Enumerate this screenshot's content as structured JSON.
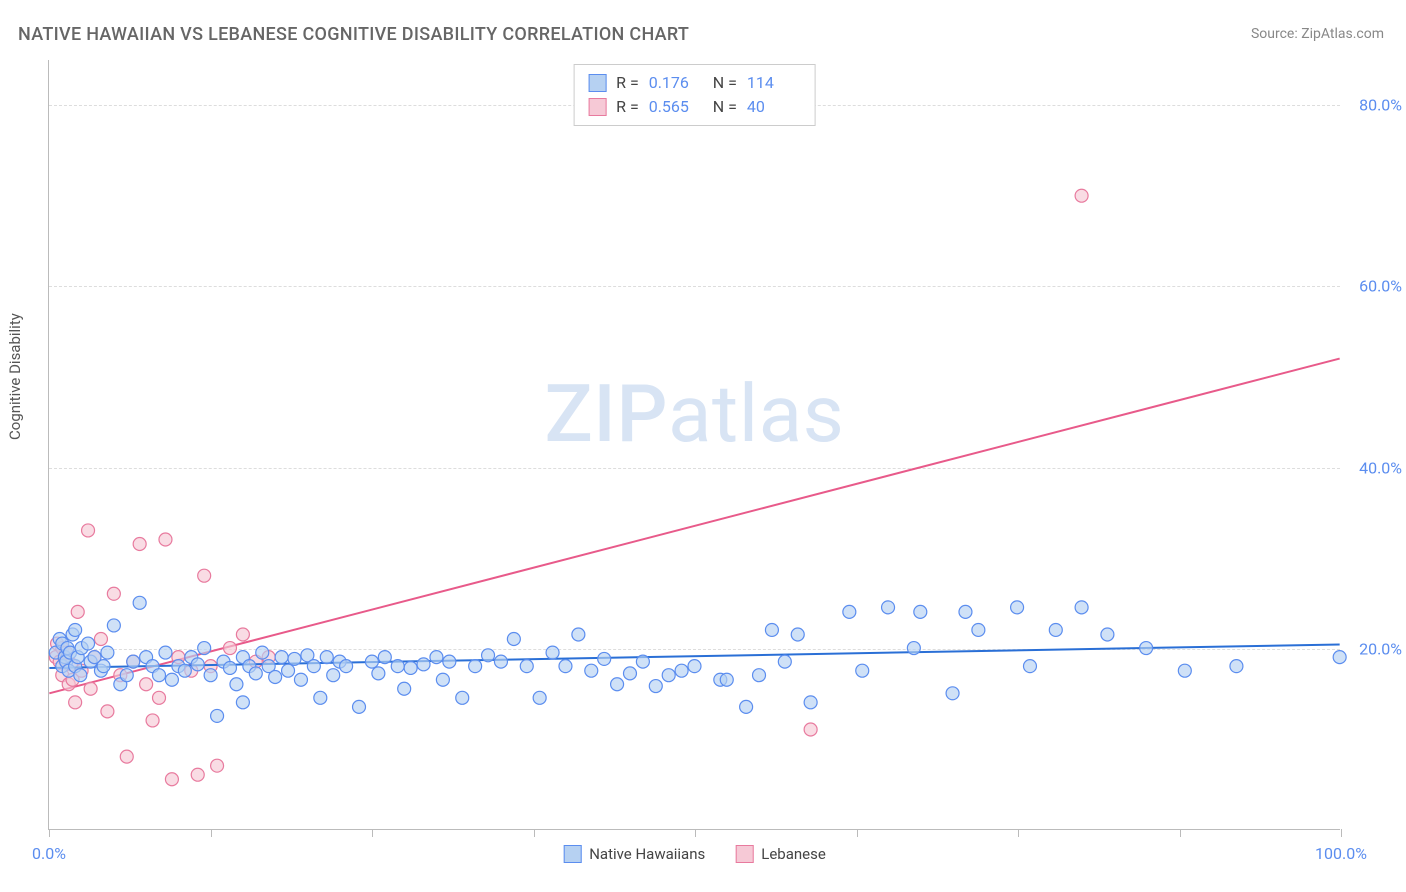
{
  "title": "NATIVE HAWAIIAN VS LEBANESE COGNITIVE DISABILITY CORRELATION CHART",
  "source": "Source: ZipAtlas.com",
  "y_axis_label": "Cognitive Disability",
  "watermark_a": "ZIP",
  "watermark_b": "atlas",
  "chart": {
    "type": "scatter",
    "xlim": [
      0,
      100
    ],
    "ylim": [
      0,
      85
    ],
    "y_ticks": [
      20,
      40,
      60,
      80
    ],
    "y_tick_labels": [
      "20.0%",
      "40.0%",
      "60.0%",
      "80.0%"
    ],
    "x_ticks": [
      0,
      12.5,
      25,
      37.5,
      50,
      62.5,
      75,
      87.5,
      100
    ],
    "x_tick_labels_shown": {
      "0": "0.0%",
      "100": "100.0%"
    },
    "grid_color": "#dddddd",
    "axis_color": "#bbbbbb",
    "background_color": "#ffffff",
    "tick_label_color": "#5b8def",
    "tick_label_fontsize": 16,
    "title_fontsize": 18,
    "title_color": "#666666",
    "marker_radius": 6.5,
    "marker_stroke_width": 1.2,
    "trend_line_width": 2,
    "series": {
      "native_hawaiians": {
        "label": "Native Hawaiians",
        "fill": "#b6d1f2",
        "stroke": "#5b8def",
        "fill_opacity": 0.65,
        "r_value": "0.176",
        "n_value": "114",
        "trend_line": {
          "x1": 0,
          "y1": 17.8,
          "x2": 100,
          "y2": 20.4,
          "color": "#2a6fd6"
        },
        "points": [
          [
            0.5,
            19.5
          ],
          [
            0.8,
            21
          ],
          [
            1,
            18
          ],
          [
            1,
            20.5
          ],
          [
            1.2,
            19
          ],
          [
            1.3,
            18.5
          ],
          [
            1.4,
            20
          ],
          [
            1.5,
            17.5
          ],
          [
            1.6,
            19.5
          ],
          [
            1.8,
            21.5
          ],
          [
            2,
            22
          ],
          [
            2,
            18
          ],
          [
            2.2,
            19
          ],
          [
            2.4,
            17
          ],
          [
            2.5,
            20
          ],
          [
            3,
            20.5
          ],
          [
            3.2,
            18.5
          ],
          [
            3.5,
            19
          ],
          [
            4,
            17.5
          ],
          [
            4.2,
            18
          ],
          [
            4.5,
            19.5
          ],
          [
            5,
            22.5
          ],
          [
            5.5,
            16
          ],
          [
            6,
            17
          ],
          [
            6.5,
            18.5
          ],
          [
            7,
            25
          ],
          [
            7.5,
            19
          ],
          [
            8,
            18
          ],
          [
            8.5,
            17
          ],
          [
            9,
            19.5
          ],
          [
            9.5,
            16.5
          ],
          [
            10,
            18
          ],
          [
            10.5,
            17.5
          ],
          [
            11,
            19
          ],
          [
            11.5,
            18.2
          ],
          [
            12,
            20
          ],
          [
            12.5,
            17
          ],
          [
            13,
            12.5
          ],
          [
            13.5,
            18.5
          ],
          [
            14,
            17.8
          ],
          [
            14.5,
            16
          ],
          [
            15,
            19
          ],
          [
            15,
            14
          ],
          [
            15.5,
            18
          ],
          [
            16,
            17.2
          ],
          [
            16.5,
            19.5
          ],
          [
            17,
            18
          ],
          [
            17.5,
            16.8
          ],
          [
            18,
            19
          ],
          [
            18.5,
            17.5
          ],
          [
            19,
            18.8
          ],
          [
            19.5,
            16.5
          ],
          [
            20,
            19.2
          ],
          [
            20.5,
            18
          ],
          [
            21,
            14.5
          ],
          [
            21.5,
            19
          ],
          [
            22,
            17
          ],
          [
            22.5,
            18.5
          ],
          [
            23,
            18
          ],
          [
            24,
            13.5
          ],
          [
            25,
            18.5
          ],
          [
            25.5,
            17.2
          ],
          [
            26,
            19
          ],
          [
            27,
            18
          ],
          [
            27.5,
            15.5
          ],
          [
            28,
            17.8
          ],
          [
            29,
            18.2
          ],
          [
            30,
            19
          ],
          [
            30.5,
            16.5
          ],
          [
            31,
            18.5
          ],
          [
            32,
            14.5
          ],
          [
            33,
            18
          ],
          [
            34,
            19.2
          ],
          [
            35,
            18.5
          ],
          [
            36,
            21
          ],
          [
            37,
            18
          ],
          [
            38,
            14.5
          ],
          [
            39,
            19.5
          ],
          [
            40,
            18
          ],
          [
            41,
            21.5
          ],
          [
            42,
            17.5
          ],
          [
            43,
            18.8
          ],
          [
            44,
            16
          ],
          [
            45,
            17.2
          ],
          [
            46,
            18.5
          ],
          [
            47,
            15.8
          ],
          [
            48,
            17
          ],
          [
            49,
            17.5
          ],
          [
            50,
            18
          ],
          [
            52,
            16.5
          ],
          [
            52.5,
            16.5
          ],
          [
            54,
            13.5
          ],
          [
            55,
            17
          ],
          [
            56,
            22
          ],
          [
            57,
            18.5
          ],
          [
            58,
            21.5
          ],
          [
            59,
            14
          ],
          [
            62,
            24
          ],
          [
            63,
            17.5
          ],
          [
            65,
            24.5
          ],
          [
            67,
            20
          ],
          [
            67.5,
            24
          ],
          [
            70,
            15
          ],
          [
            71,
            24
          ],
          [
            72,
            22
          ],
          [
            75,
            24.5
          ],
          [
            76,
            18
          ],
          [
            78,
            22
          ],
          [
            80,
            24.5
          ],
          [
            82,
            21.5
          ],
          [
            85,
            20
          ],
          [
            88,
            17.5
          ],
          [
            92,
            18
          ],
          [
            100,
            19
          ]
        ]
      },
      "lebanese": {
        "label": "Lebanese",
        "fill": "#f6c9d6",
        "stroke": "#e87a9e",
        "fill_opacity": 0.65,
        "r_value": "0.565",
        "n_value": "40",
        "trend_line": {
          "x1": 0,
          "y1": 15,
          "x2": 100,
          "y2": 52,
          "color": "#e85a8a"
        },
        "points": [
          [
            0.5,
            19
          ],
          [
            0.6,
            20.5
          ],
          [
            0.8,
            18.5
          ],
          [
            1,
            17
          ],
          [
            1,
            20
          ],
          [
            1.2,
            18.8
          ],
          [
            1.3,
            19.5
          ],
          [
            1.5,
            16
          ],
          [
            1.7,
            18.2
          ],
          [
            1.8,
            16.5
          ],
          [
            2,
            14
          ],
          [
            2.2,
            24
          ],
          [
            2.5,
            17.5
          ],
          [
            3,
            33
          ],
          [
            3.2,
            15.5
          ],
          [
            3.5,
            19
          ],
          [
            4,
            21
          ],
          [
            4.5,
            13
          ],
          [
            5,
            26
          ],
          [
            5.5,
            17
          ],
          [
            6,
            8
          ],
          [
            6.5,
            18.5
          ],
          [
            7,
            31.5
          ],
          [
            7.5,
            16
          ],
          [
            8,
            12
          ],
          [
            8.5,
            14.5
          ],
          [
            9,
            32
          ],
          [
            9.5,
            5.5
          ],
          [
            10,
            19
          ],
          [
            11,
            17.5
          ],
          [
            11.5,
            6
          ],
          [
            12,
            28
          ],
          [
            12.5,
            18
          ],
          [
            13,
            7
          ],
          [
            14,
            20
          ],
          [
            15,
            21.5
          ],
          [
            16,
            18.5
          ],
          [
            17,
            19
          ],
          [
            59,
            11
          ],
          [
            80,
            70
          ]
        ]
      }
    },
    "top_legend": {
      "r_label": "R =",
      "n_label": "N ="
    },
    "bottom_legend": {
      "swatch_size": 18
    }
  }
}
